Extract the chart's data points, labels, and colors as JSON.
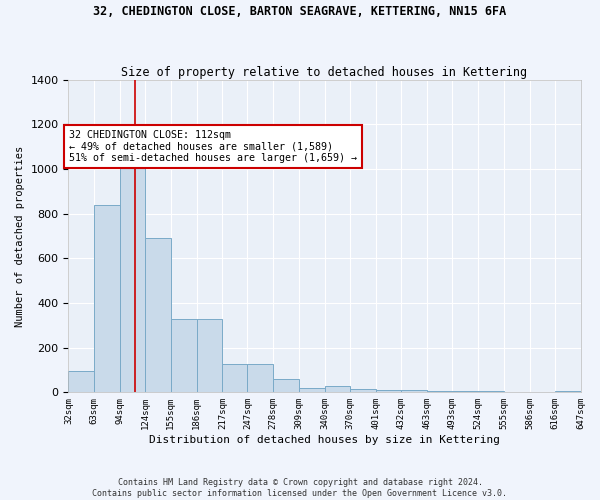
{
  "title": "32, CHEDINGTON CLOSE, BARTON SEAGRAVE, KETTERING, NN15 6FA",
  "subtitle": "Size of property relative to detached houses in Kettering",
  "xlabel": "Distribution of detached houses by size in Kettering",
  "ylabel": "Number of detached properties",
  "bar_color": "#c9daea",
  "bar_edge_color": "#7aaac8",
  "bg_color": "#eaf0f8",
  "grid_color": "#ffffff",
  "bins": [
    32,
    63,
    94,
    124,
    155,
    186,
    217,
    247,
    278,
    309,
    340,
    370,
    401,
    432,
    463,
    493,
    524,
    555,
    586,
    616,
    647
  ],
  "values": [
    95,
    838,
    1082,
    693,
    328,
    328,
    125,
    125,
    60,
    20,
    28,
    15,
    10,
    10,
    5,
    5,
    5,
    3,
    3,
    5
  ],
  "property_size": 112,
  "annotation_text": "32 CHEDINGTON CLOSE: 112sqm\n← 49% of detached houses are smaller (1,589)\n51% of semi-detached houses are larger (1,659) →",
  "annotation_box_color": "#ffffff",
  "annotation_box_edge": "#cc0000",
  "vline_color": "#cc0000",
  "ylim": [
    0,
    1400
  ],
  "footnote": "Contains HM Land Registry data © Crown copyright and database right 2024.\nContains public sector information licensed under the Open Government Licence v3.0.",
  "tick_labels": [
    "32sqm",
    "63sqm",
    "94sqm",
    "124sqm",
    "155sqm",
    "186sqm",
    "217sqm",
    "247sqm",
    "278sqm",
    "309sqm",
    "340sqm",
    "370sqm",
    "401sqm",
    "432sqm",
    "463sqm",
    "493sqm",
    "524sqm",
    "555sqm",
    "586sqm",
    "616sqm",
    "647sqm"
  ],
  "fig_facecolor": "#f0f4fc",
  "title_fontsize": 8.5,
  "subtitle_fontsize": 8.5
}
